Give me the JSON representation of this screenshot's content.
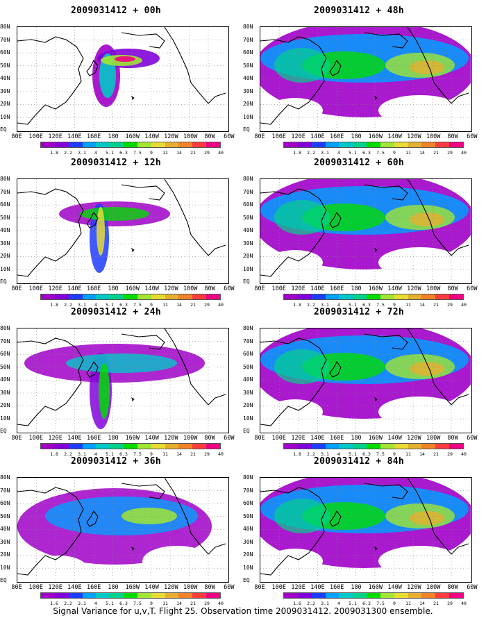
{
  "panels": [
    {
      "id": "p00",
      "title": "2009031412 + 00h",
      "intensity": 0.0
    },
    {
      "id": "p12",
      "title": "2009031412 + 12h",
      "intensity": 0.15
    },
    {
      "id": "p24",
      "title": "2009031412 + 24h",
      "intensity": 0.3
    },
    {
      "id": "p36",
      "title": "2009031412 + 36h",
      "intensity": 0.45
    },
    {
      "id": "p48",
      "title": "2009031412 + 48h",
      "intensity": 0.6
    },
    {
      "id": "p60",
      "title": "2009031412 + 60h",
      "intensity": 0.72
    },
    {
      "id": "p72",
      "title": "2009031412 + 72h",
      "intensity": 0.85
    },
    {
      "id": "p84",
      "title": "2009031412 + 84h",
      "intensity": 1.0
    }
  ],
  "lat_labels": [
    "80N",
    "70N",
    "60N",
    "50N",
    "40N",
    "30N",
    "20N",
    "10N",
    "EQ"
  ],
  "lon_labels": [
    "80E",
    "100E",
    "120E",
    "140E",
    "160E",
    "180",
    "160W",
    "140W",
    "120W",
    "100W",
    "80W",
    "60W"
  ],
  "colorbar": {
    "labels": [
      "1.8",
      "2.2",
      "3.1",
      "4",
      "5.1",
      "6.3",
      "7.5",
      "9",
      "11",
      "14",
      "21",
      "29",
      "40"
    ],
    "colors": [
      "#a000c8",
      "#8200dc",
      "#1e3cff",
      "#00a0ff",
      "#00c8c8",
      "#00d28c",
      "#00dc00",
      "#a0e632",
      "#e6dc32",
      "#e6af2d",
      "#f08228",
      "#fa3c3c",
      "#f00082"
    ]
  },
  "colorbar_last_panel_labels": [
    "1.6",
    "2.2",
    "3.1",
    "4",
    "5.1",
    "6.3",
    "7.5",
    "9",
    "11",
    "14",
    "21",
    "29",
    "40"
  ],
  "caption": "Signal Variance for u,v,T. Flight 25. Observation time 2009031412. 2009031300 ensemble."
}
